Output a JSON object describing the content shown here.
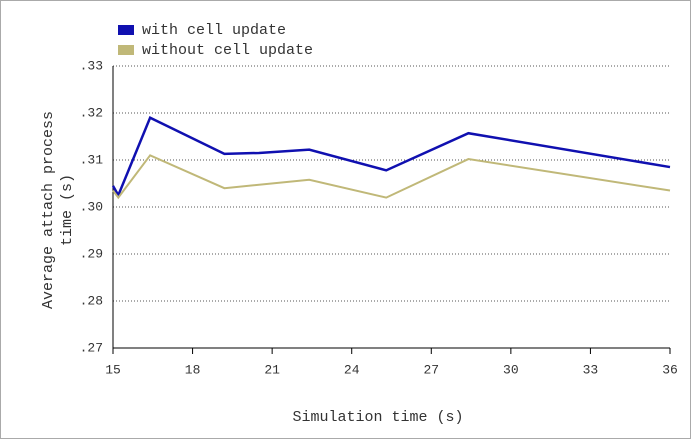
{
  "chart_data": {
    "type": "line",
    "xlabel": "Simulation time (s)",
    "ylabel": [
      "Average attach process",
      "time (s)"
    ],
    "xlim": [
      15,
      36
    ],
    "ylim": [
      0.27,
      0.33
    ],
    "xticks": [
      15,
      18,
      21,
      24,
      27,
      30,
      33,
      36
    ],
    "yticks": [
      {
        "value": 0.27,
        "label": ".27"
      },
      {
        "value": 0.28,
        "label": ".28"
      },
      {
        "value": 0.29,
        "label": ".29"
      },
      {
        "value": 0.3,
        "label": ".30"
      },
      {
        "value": 0.31,
        "label": ".31"
      },
      {
        "value": 0.32,
        "label": ".32"
      },
      {
        "value": 0.33,
        "label": ".33"
      }
    ],
    "grid": true,
    "legend": "top-left",
    "series": [
      {
        "name": "with cell update",
        "color": "#1010b0",
        "x": [
          15,
          15.2,
          16.4,
          19.2,
          20.5,
          22.4,
          25.3,
          28.4,
          36
        ],
        "values": [
          0.3045,
          0.3025,
          0.319,
          0.3113,
          0.3115,
          0.3122,
          0.3078,
          0.3157,
          0.3085
        ]
      },
      {
        "name": "without cell update",
        "color": "#c0b878",
        "x": [
          15,
          15.2,
          16.4,
          19.2,
          22.4,
          25.3,
          28.4,
          36
        ],
        "values": [
          0.3035,
          0.302,
          0.311,
          0.304,
          0.3058,
          0.302,
          0.3102,
          0.3035
        ]
      }
    ]
  }
}
